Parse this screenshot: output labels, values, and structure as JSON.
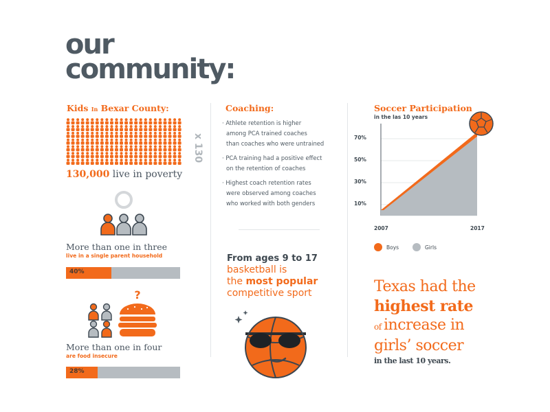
{
  "title": {
    "line1": "our",
    "line2": "community:"
  },
  "kids": {
    "heading_a": "Kids ",
    "heading_b": "In",
    "heading_c": " Bexar County:",
    "multiplier": "x 130",
    "poverty_num": "130,000",
    "poverty_text": " live in poverty",
    "single_parent_main": "More than one in three",
    "single_parent_sub": "live in a single parent household",
    "single_parent_percent": "40%",
    "single_parent_value": 40,
    "food_main": "More than one in four",
    "food_sub": "are food insecure",
    "food_percent": "28%",
    "food_value": 28,
    "question_mark": "?"
  },
  "coaching": {
    "heading": "Coaching:",
    "bullets": [
      {
        "line1": "· Athlete retention is higher",
        "line2": "among PCA trained coaches",
        "line3": "than coaches who were untrained"
      },
      {
        "line1": "· PCA training had a positive effect",
        "line2": "on the retention of coaches",
        "line3": ""
      },
      {
        "line1": "· Highest coach retention rates",
        "line2": "were observed among coaches",
        "line3": "who worked with both genders"
      }
    ],
    "basketball": {
      "line1": "From ages 9 to 17",
      "line2": "basketball is",
      "line3a": "the ",
      "line3b": "most popular",
      "line4": "competitive sport"
    }
  },
  "soccer": {
    "heading": "Soccer Participation",
    "subheading": "in the las 10 years",
    "legend_boys": "Boys",
    "legend_girls": "Girls",
    "callout": {
      "line1": "Texas had the",
      "line2": "highest rate",
      "line3a": "of ",
      "line3b": "increase in",
      "line4": "girls’ soccer",
      "line5": "in the last 10 years."
    },
    "colors": {
      "boys": "#f26a1b",
      "girls": "#b6bcc1"
    }
  },
  "chart_data": {
    "type": "area",
    "title": "Soccer Participation",
    "subtitle": "in the las 10 years",
    "x": [
      2007,
      2017
    ],
    "x_tick_labels": [
      "2007",
      "2017"
    ],
    "y_tick_labels": [
      "70%",
      "50%",
      "30%",
      "10%"
    ],
    "series": [
      {
        "name": "Boys",
        "values": [
          5,
          76
        ]
      },
      {
        "name": "Girls",
        "values": [
          5,
          72
        ]
      }
    ],
    "ylim": [
      0,
      80
    ],
    "legend": "bottom-left",
    "grid": true
  }
}
